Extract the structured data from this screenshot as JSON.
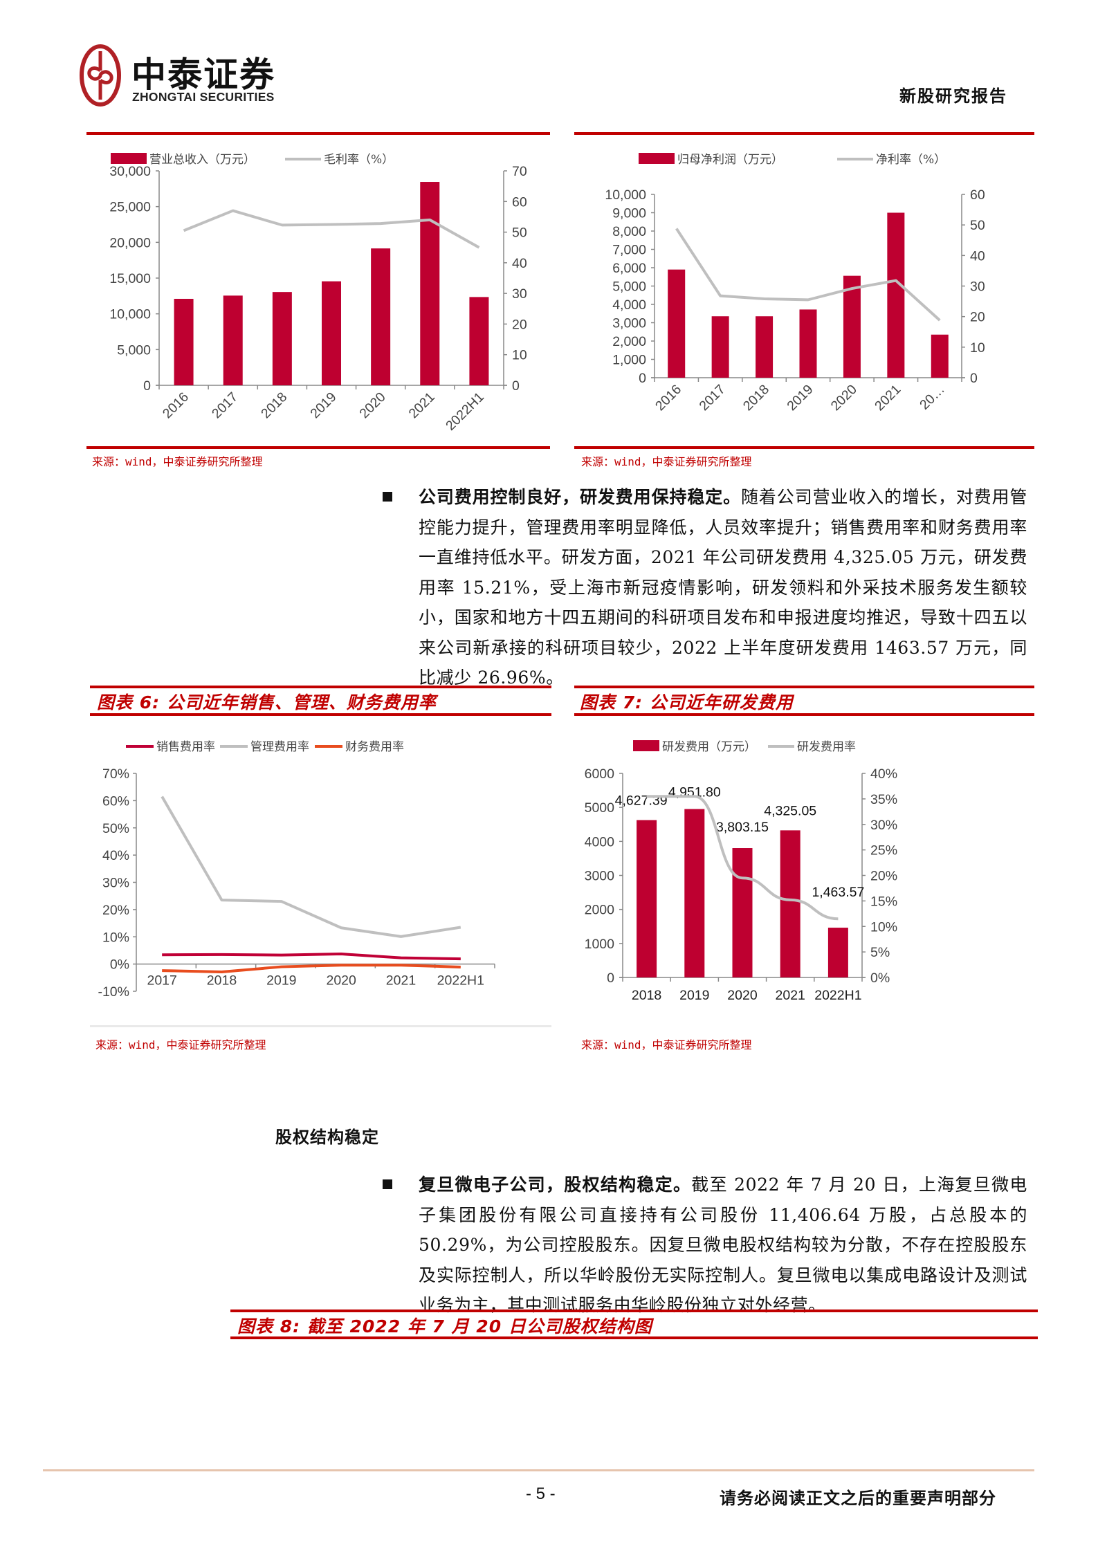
{
  "header": {
    "logo_cn": "中泰证券",
    "logo_en": "ZHONGTAI SECURITIES",
    "report_type": "新股研究报告"
  },
  "colors": {
    "brand_red": "#c00000",
    "bar_red": "#be0030",
    "line_gray": "#bfbfbf",
    "sales_line": "#c00036",
    "finance_line": "#e84c1e",
    "footer_line": "#e6c4ad"
  },
  "charts": {
    "revenue": {
      "source": "来源：wind，中泰证券研究所整理"
    },
    "profit": {
      "source": "来源：wind，中泰证券研究所整理"
    },
    "fig6": {
      "title": "图表 6:  公司近年销售、管理、财务费用率",
      "source": "来源：wind，中泰证券研究所整理"
    },
    "fig7": {
      "title": "图表 7:  公司近年研发费用",
      "source": "来源：wind，中泰证券研究所整理"
    }
  },
  "chart_data": [
    {
      "type": "bar",
      "id": "revenue",
      "title": "",
      "categories": [
        "2016",
        "2017",
        "2018",
        "2019",
        "2020",
        "2021",
        "2022H1"
      ],
      "series": [
        {
          "name": "营业总收入（万元）",
          "type": "bar",
          "axis": "left",
          "values": [
            12100,
            12550,
            13050,
            14550,
            19150,
            28450,
            12350
          ]
        },
        {
          "name": "毛利率（%）",
          "type": "line",
          "axis": "right",
          "values": [
            50.5,
            57.0,
            52.3,
            52.5,
            52.8,
            54.0,
            45.0
          ]
        }
      ],
      "yleft": {
        "min": 0,
        "max": 30000,
        "ticks": [
          "0",
          "5,000",
          "10,000",
          "15,000",
          "20,000",
          "25,000",
          "30,000"
        ]
      },
      "yright": {
        "min": 0,
        "max": 70,
        "ticks": [
          "0",
          "10",
          "20",
          "30",
          "40",
          "50",
          "60",
          "70"
        ]
      },
      "xlabel": "",
      "ylabel": "",
      "legend_position": "top",
      "grid": false,
      "x_tick_rotation": -45
    },
    {
      "type": "bar",
      "id": "profit",
      "title": "",
      "categories": [
        "2016",
        "2017",
        "2018",
        "2019",
        "2020",
        "2021",
        "20…"
      ],
      "series": [
        {
          "name": "归母净利润（万元）",
          "type": "bar",
          "axis": "left",
          "values": [
            5900,
            3350,
            3350,
            3720,
            5560,
            9000,
            2350
          ]
        },
        {
          "name": "净利率（%）",
          "type": "line",
          "axis": "right",
          "values": [
            48.8,
            26.8,
            25.8,
            25.5,
            29.2,
            31.8,
            18.8
          ]
        }
      ],
      "yleft": {
        "min": 0,
        "max": 10000,
        "ticks": [
          "0",
          "1,000",
          "2,000",
          "3,000",
          "4,000",
          "5,000",
          "6,000",
          "7,000",
          "8,000",
          "9,000",
          "10,000"
        ]
      },
      "yright": {
        "min": 0,
        "max": 60,
        "ticks": [
          "0",
          "10",
          "20",
          "30",
          "40",
          "50",
          "60"
        ]
      },
      "xlabel": "",
      "ylabel": "",
      "legend_position": "top",
      "grid": false,
      "x_tick_rotation": -45
    },
    {
      "type": "line",
      "id": "fig6",
      "title": "图表 6:  公司近年销售、管理、财务费用率",
      "categories": [
        "2017",
        "2018",
        "2019",
        "2020",
        "2021",
        "2022H1"
      ],
      "series": [
        {
          "name": "销售费用率",
          "values": [
            3.4,
            3.5,
            3.3,
            3.7,
            2.3,
            1.9
          ]
        },
        {
          "name": "管理费用率",
          "values": [
            61.5,
            23.5,
            23.0,
            13.3,
            10.1,
            13.5
          ]
        },
        {
          "name": "财务费用率",
          "values": [
            -2.4,
            -2.9,
            -1.0,
            -0.4,
            -0.4,
            -1.1
          ]
        }
      ],
      "y": {
        "min": -10,
        "max": 70,
        "ticks": [
          "-10%",
          "0%",
          "10%",
          "20%",
          "30%",
          "40%",
          "50%",
          "60%",
          "70%"
        ]
      },
      "xlabel": "",
      "ylabel": "",
      "legend_position": "top",
      "grid": false
    },
    {
      "type": "bar",
      "id": "fig7",
      "title": "图表 7:  公司近年研发费用",
      "categories": [
        "2018",
        "2019",
        "2020",
        "2021",
        "2022H1"
      ],
      "series": [
        {
          "name": "研发费用（万元）",
          "type": "bar",
          "axis": "left",
          "values": [
            4627.39,
            4951.8,
            3803.15,
            4325.05,
            1463.57
          ],
          "labels": [
            "4,627.39",
            "4,951.80",
            "3,803.15",
            "4,325.05",
            "1,463.57"
          ]
        },
        {
          "name": "研发费用率",
          "type": "line",
          "axis": "right",
          "smooth": true,
          "values": [
            35.5,
            35.5,
            19.5,
            15.21,
            11.5
          ]
        }
      ],
      "yleft": {
        "min": 0,
        "max": 6000,
        "ticks": [
          "0",
          "1000",
          "2000",
          "3000",
          "4000",
          "5000",
          "6000"
        ]
      },
      "yright": {
        "min": 0,
        "max": 40,
        "ticks": [
          "0%",
          "5%",
          "10%",
          "15%",
          "20%",
          "25%",
          "30%",
          "35%",
          "40%"
        ]
      },
      "xlabel": "",
      "ylabel": "",
      "legend_position": "top",
      "grid": false
    }
  ],
  "section1": {
    "bold_lead": "公司费用控制良好，研发费用保持稳定。",
    "body": "随着公司营业收入的增长，对费用管控能力提升，管理费用率明显降低，人员效率提升；销售费用率和财务费用率一直维持低水平。研发方面，2021 年公司研发费用 4,325.05 万元，研发费用率 15.21%，受上海市新冠疫情影响，研发领料和外采技术服务发生额较小，国家和地方十四五期间的科研项目发布和申报进度均推迟，导致十四五以来公司新承接的科研项目较少，2022 上半年度研发费用 1463.57 万元，同比减少 26.96%。"
  },
  "section2": {
    "heading": "股权结构稳定",
    "bold_lead": "复旦微电子公司，股权结构稳定。",
    "body": "截至 2022 年 7 月 20 日，上海复旦微电子集团股份有限公司直接持有公司股份 11,406.64 万股，占总股本的 50.29%，为公司控股股东。因复旦微电股权结构较为分散，不存在控股股东及实际控制人，所以华岭股份无实际控制人。复旦微电以集成电路设计及测试业务为主，其中测试服务由华岭股份独立对外经营。",
    "figure_title": "图表 8:  截至 2022 年 7 月 20 日公司股权结构图"
  },
  "footer": {
    "page_number": "- 5 -",
    "disclaimer": "请务必阅读正文之后的重要声明部分"
  }
}
